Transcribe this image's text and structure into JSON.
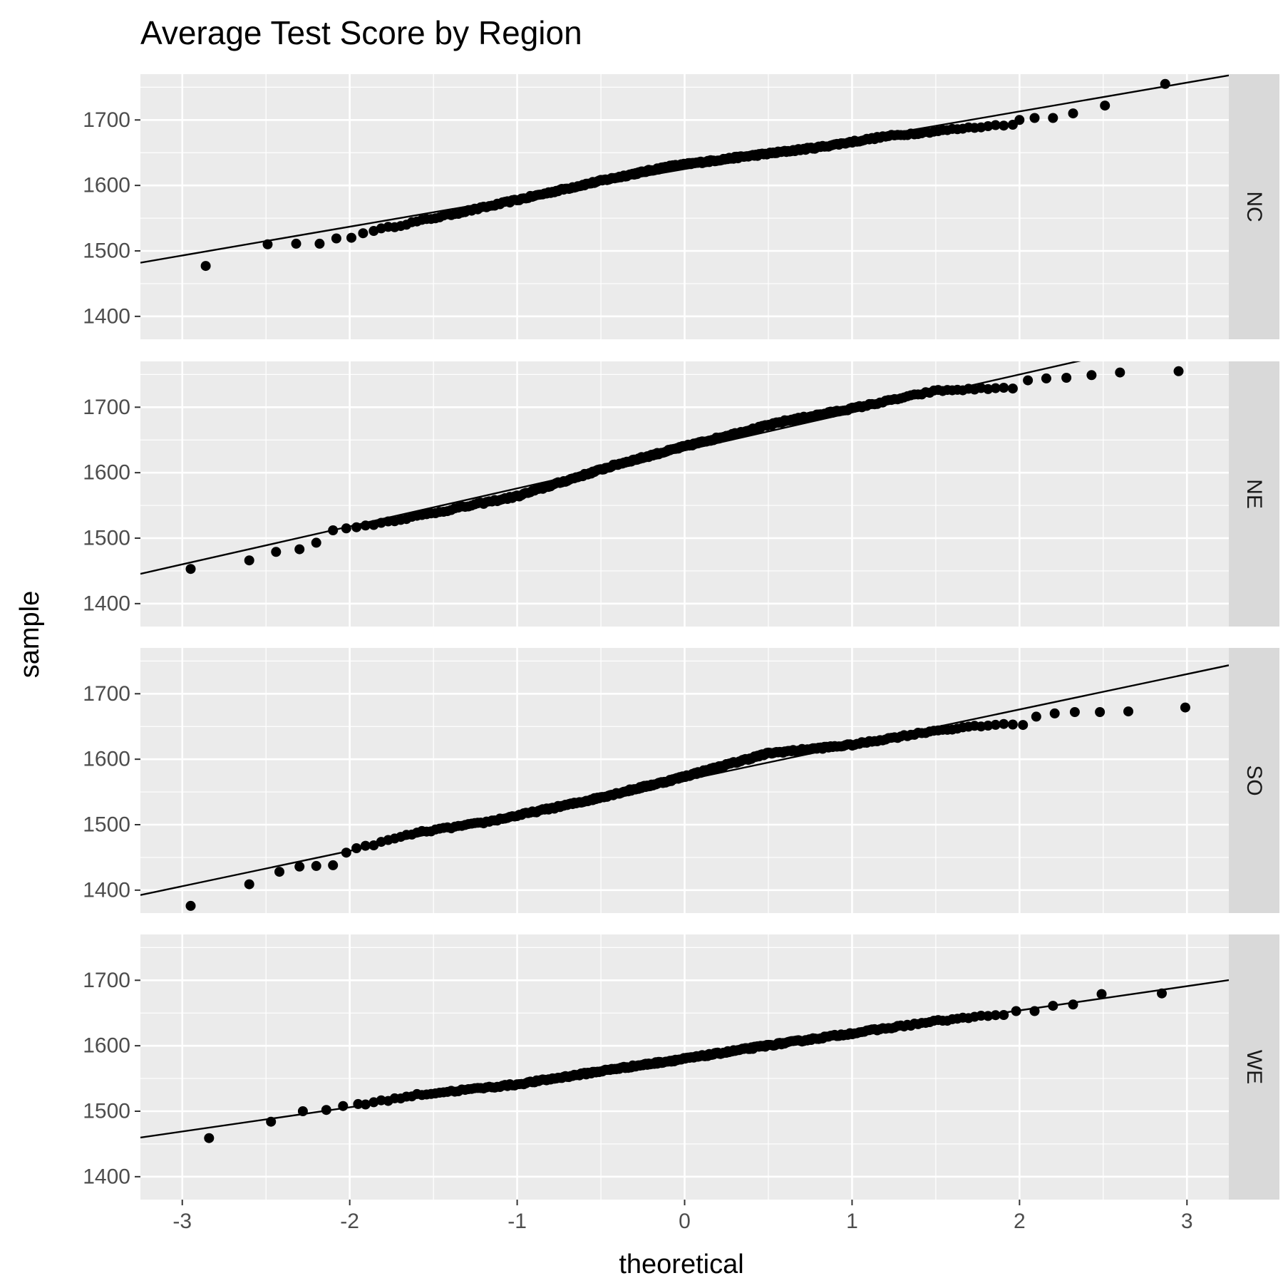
{
  "chart_data": {
    "type": "scatter",
    "subtype": "qq-plot faceted",
    "title": "Average Test Score by Region",
    "xlabel": "theoretical",
    "ylabel": "sample",
    "xlim": [
      -3.25,
      3.25
    ],
    "ylim": [
      1365,
      1770
    ],
    "x_ticks": [
      -3,
      -2,
      -1,
      0,
      1,
      2,
      3
    ],
    "y_ticks": [
      1400,
      1500,
      1600,
      1700
    ],
    "grid": true,
    "colors": {
      "panel_background": "#ebebeb",
      "grid": "#ffffff",
      "strip_background": "#d9d9d9",
      "points": "#000000",
      "line": "#000000"
    },
    "facets": [
      {
        "label": "NC",
        "n": 300,
        "line": {
          "intercept": 1625,
          "slope": 44
        },
        "dev": [
          [
            -4,
            -80
          ],
          [
            -2.6,
            -20
          ],
          [
            -2.1,
            -10
          ],
          [
            -1.8,
            -12
          ],
          [
            -1.2,
            -6
          ],
          [
            -0.5,
            4
          ],
          [
            -0.1,
            8
          ],
          [
            0.3,
            4
          ],
          [
            0.8,
            -2
          ],
          [
            1.2,
            -3
          ],
          [
            1.6,
            -10
          ],
          [
            2.0,
            -18
          ],
          [
            2.4,
            -24
          ],
          [
            3.0,
            -2
          ],
          [
            4,
            30
          ]
        ],
        "points": [
          [
            -2.86,
            1477
          ],
          [
            -2.49,
            1510
          ],
          [
            -2.32,
            1511
          ],
          [
            -2.18,
            1511
          ],
          [
            -2.08,
            1519
          ],
          [
            -1.99,
            1520
          ],
          [
            -1.92,
            1527
          ],
          [
            2.0,
            1700
          ],
          [
            2.09,
            1703
          ],
          [
            2.2,
            1703
          ],
          [
            2.32,
            1710
          ],
          [
            2.51,
            1722
          ],
          [
            2.87,
            1755
          ]
        ]
      },
      {
        "label": "NE",
        "n": 300,
        "line": {
          "intercept": 1634,
          "slope": 58
        },
        "dev": [
          [
            -4,
            -40
          ],
          [
            -2.6,
            -40
          ],
          [
            -2.1,
            -2
          ],
          [
            -1.6,
            -8
          ],
          [
            -1.0,
            -12
          ],
          [
            -0.4,
            2
          ],
          [
            0,
            6
          ],
          [
            0.6,
            10
          ],
          [
            1.0,
            6
          ],
          [
            1.5,
            4
          ],
          [
            1.8,
            -10
          ],
          [
            2.1,
            -25
          ],
          [
            2.4,
            -42
          ],
          [
            4,
            -80
          ]
        ],
        "points": [
          [
            -2.95,
            1453
          ],
          [
            -2.6,
            1466
          ],
          [
            -2.44,
            1479
          ],
          [
            -2.3,
            1483
          ],
          [
            -2.2,
            1493
          ],
          [
            -2.1,
            1512
          ],
          [
            2.05,
            1741
          ],
          [
            2.16,
            1744
          ],
          [
            2.28,
            1745
          ],
          [
            2.43,
            1749
          ],
          [
            2.6,
            1753
          ],
          [
            2.95,
            1755
          ]
        ]
      },
      {
        "label": "SO",
        "n": 300,
        "line": {
          "intercept": 1568,
          "slope": 54
        },
        "dev": [
          [
            -4,
            -55
          ],
          [
            -2.6,
            -25
          ],
          [
            -2.0,
            0
          ],
          [
            -1.6,
            6
          ],
          [
            -1.2,
            0
          ],
          [
            -0.6,
            0
          ],
          [
            -0.1,
            4
          ],
          [
            0.5,
            14
          ],
          [
            1.0,
            0
          ],
          [
            1.5,
            -5
          ],
          [
            1.9,
            -17
          ],
          [
            2.2,
            -35
          ],
          [
            2.6,
            -60
          ],
          [
            4,
            -80
          ]
        ],
        "points": [
          [
            -2.95,
            1376
          ],
          [
            -2.6,
            1409
          ],
          [
            -2.42,
            1428
          ],
          [
            -2.3,
            1436
          ],
          [
            -2.2,
            1437
          ],
          [
            -2.1,
            1438
          ],
          [
            2.1,
            1665
          ],
          [
            2.21,
            1670
          ],
          [
            2.33,
            1672
          ],
          [
            2.48,
            1672
          ],
          [
            2.65,
            1673
          ],
          [
            2.99,
            1679
          ]
        ]
      },
      {
        "label": "WE",
        "n": 300,
        "line": {
          "intercept": 1580,
          "slope": 37
        },
        "dev": [
          [
            -4,
            -20
          ],
          [
            -2.6,
            -10
          ],
          [
            -2.1,
            0
          ],
          [
            -1.6,
            4
          ],
          [
            -1.0,
            -2
          ],
          [
            -0.4,
            0
          ],
          [
            0,
            0
          ],
          [
            0.5,
            2
          ],
          [
            1.0,
            2
          ],
          [
            1.5,
            2
          ],
          [
            2.0,
            -3
          ],
          [
            2.5,
            -5
          ],
          [
            4,
            -5
          ]
        ],
        "points": [
          [
            -2.84,
            1459
          ],
          [
            -2.47,
            1484
          ],
          [
            -2.28,
            1500
          ],
          [
            -2.14,
            1502
          ],
          [
            -2.04,
            1508
          ],
          [
            -1.95,
            1511
          ],
          [
            1.98,
            1653
          ],
          [
            2.09,
            1653
          ],
          [
            2.2,
            1661
          ],
          [
            2.32,
            1663
          ],
          [
            2.49,
            1679
          ],
          [
            2.85,
            1680
          ]
        ]
      }
    ]
  }
}
